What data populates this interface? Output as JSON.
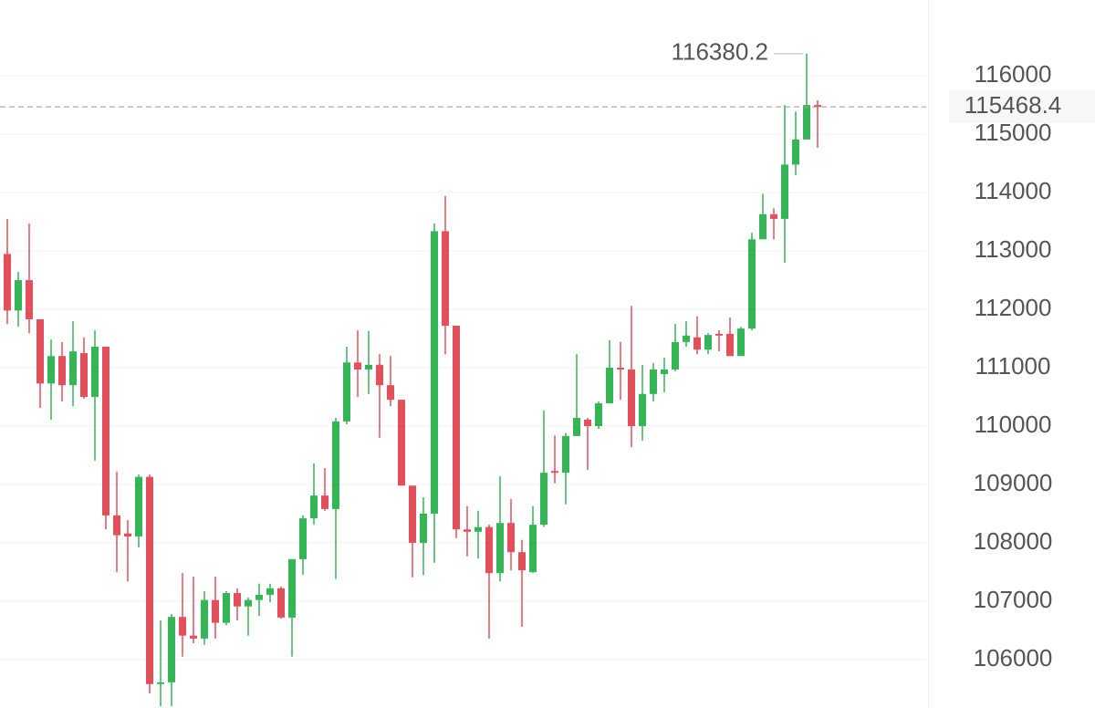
{
  "chart_data": {
    "type": "candlestick",
    "ylim": [
      105170,
      117300
    ],
    "yticks": [
      106000,
      107000,
      108000,
      109000,
      110000,
      111000,
      112000,
      113000,
      114000,
      115000,
      116000
    ],
    "grid": true,
    "up_color": "#35b458",
    "down_color": "#e2505c",
    "open": [
      112950,
      111980,
      112500,
      111830,
      110730,
      111200,
      110700,
      111250,
      110500,
      111360,
      108470,
      108160,
      108110,
      109130,
      105580,
      105610,
      106730,
      106410,
      106360,
      107020,
      106630,
      107140,
      106910,
      107020,
      107110,
      107220,
      106720,
      107720,
      108420,
      108810,
      108580,
      110080,
      111090,
      110970,
      111050,
      110700,
      110450,
      108980,
      108000,
      108500,
      113340,
      111720,
      108230,
      108190,
      108270,
      107480,
      108340,
      107840,
      107500,
      108310,
      109230,
      109200,
      109830,
      110110,
      110000,
      110390,
      111000,
      110970,
      110000,
      110550,
      110890,
      110970,
      111440,
      111520,
      111310,
      111580,
      111580,
      111200,
      111670,
      113200,
      113630,
      113550,
      114480,
      114910,
      115500
    ],
    "high": [
      113550,
      112640,
      113470,
      111830,
      111480,
      111440,
      111800,
      111520,
      111640,
      111360,
      109220,
      108390,
      109170,
      109170,
      106670,
      106780,
      107480,
      107420,
      107170,
      107420,
      107170,
      107220,
      107060,
      107300,
      107300,
      107250,
      107720,
      108470,
      109360,
      109280,
      110140,
      111360,
      111640,
      111630,
      111230,
      111200,
      110450,
      108980,
      108780,
      113470,
      113940,
      111720,
      108630,
      108550,
      108310,
      109140,
      108750,
      108050,
      108630,
      110270,
      109840,
      109880,
      111230,
      110140,
      110420,
      111470,
      111440,
      112060,
      111050,
      111080,
      111170,
      111750,
      111800,
      111880,
      111590,
      111640,
      111860,
      111700,
      113310,
      113980,
      113730,
      115500,
      115390,
      116380.2,
      115580
    ],
    "low": [
      111750,
      111700,
      111590,
      110310,
      110110,
      110420,
      110340,
      110470,
      109410,
      108230,
      107500,
      107340,
      107920,
      105420,
      105200,
      105200,
      106050,
      106280,
      106250,
      106360,
      106590,
      106670,
      106410,
      106750,
      106980,
      106700,
      106050,
      107450,
      108310,
      108550,
      107380,
      110030,
      110500,
      110550,
      109800,
      110340,
      108980,
      107410,
      107450,
      107660,
      111230,
      108080,
      107770,
      107730,
      106360,
      107340,
      107530,
      106560,
      107480,
      108270,
      109020,
      108660,
      109830,
      109250,
      109950,
      110390,
      110450,
      109640,
      109750,
      110420,
      110580,
      110940,
      111360,
      111230,
      111230,
      111280,
      111200,
      111200,
      111640,
      113200,
      113200,
      112800,
      114300,
      114910,
      114770
    ],
    "close": [
      111980,
      112500,
      111830,
      110730,
      111200,
      110700,
      111280,
      110500,
      111360,
      108470,
      108130,
      108110,
      109130,
      105580,
      105610,
      106730,
      106410,
      106360,
      107020,
      106630,
      107140,
      106910,
      107020,
      107110,
      107220,
      106720,
      107720,
      108420,
      108810,
      108580,
      110080,
      111090,
      110970,
      111050,
      110700,
      110450,
      108980,
      108000,
      108500,
      113340,
      111720,
      108230,
      108190,
      108270,
      107480,
      108340,
      107840,
      107530,
      108310,
      109200,
      109200,
      109830,
      110140,
      110000,
      110390,
      111000,
      110970,
      110000,
      110550,
      110970,
      110970,
      111440,
      111550,
      111310,
      111560,
      111550,
      111200,
      111670,
      113200,
      113630,
      113550,
      114480,
      114910,
      115500,
      115468.4
    ]
  }
}
